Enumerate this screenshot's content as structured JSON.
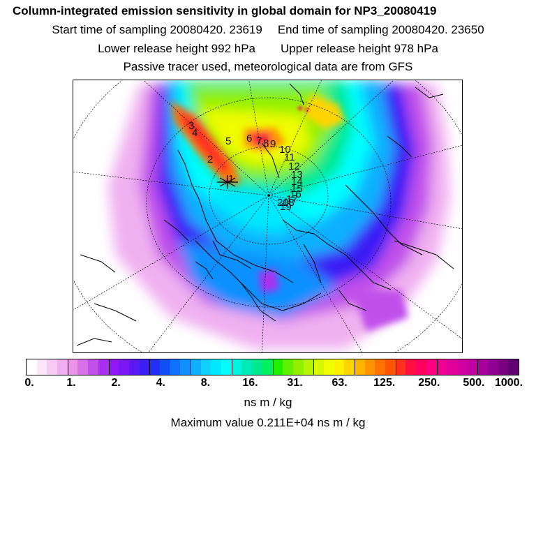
{
  "title": "Column-integrated emission sensitivity in global domain for NP3_20080419",
  "sampling": {
    "start_label": "Start time of sampling",
    "start_value": "20080420. 23619",
    "end_label": "End time of sampling",
    "end_value": "20080420. 23650"
  },
  "release": {
    "lower_label": "Lower release height",
    "lower_value": "992 hPa",
    "upper_label": "Upper release height",
    "upper_value": "978 hPa"
  },
  "note": "Passive tracer used, meteorological data are from GFS",
  "colorbar": {
    "colors": [
      "#ffffff",
      "#fbe6fb",
      "#f6ccf6",
      "#f0b0f0",
      "#ea94ea",
      "#d870e8",
      "#c050ea",
      "#a830f0",
      "#9018f5",
      "#7a18f5",
      "#5a18f2",
      "#3a1ef5",
      "#2030f5",
      "#1050f5",
      "#1070ff",
      "#1090ff",
      "#10b0ff",
      "#10d0ff",
      "#00e8ff",
      "#00ffff",
      "#00f2e0",
      "#00eab8",
      "#00e890",
      "#00f060",
      "#20f000",
      "#60f000",
      "#90f000",
      "#b8f400",
      "#d8f800",
      "#f0fc00",
      "#fff000",
      "#ffd400",
      "#ffb400",
      "#ff9400",
      "#ff7400",
      "#ff5400",
      "#ff3020",
      "#ff1040",
      "#ff0060",
      "#ff0080",
      "#f00090",
      "#e0009a",
      "#d000a0",
      "#c000a0",
      "#a8009c",
      "#900090",
      "#780080",
      "#600070"
    ],
    "major_every": 4,
    "tick_labels": [
      "0.",
      "1.",
      "2.",
      "4.",
      "8.",
      "16.",
      "31.",
      "63.",
      "125.",
      "250.",
      "500.",
      "1000."
    ],
    "unit": "ns m / kg"
  },
  "max_value_text": "Maximum value  0.211E+04 ns m / kg",
  "trajectory_labels": [
    "1",
    "2",
    "3",
    "4",
    "5",
    "6",
    "7",
    "8",
    "9",
    "10",
    "11",
    "12",
    "13",
    "14",
    "15",
    "16",
    "17",
    "18",
    "19",
    "20"
  ]
}
